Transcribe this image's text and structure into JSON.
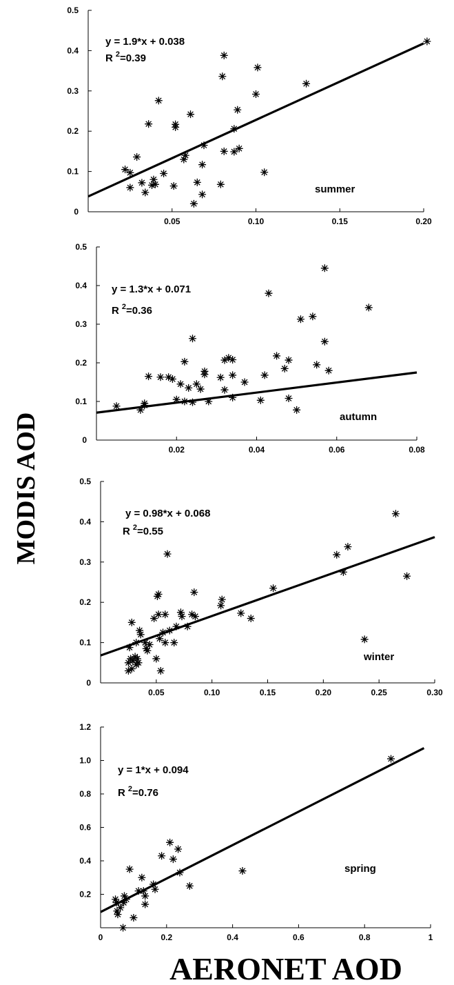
{
  "figure": {
    "ylabel": "MODIS AOD",
    "xlabel": "AERONET AOD"
  },
  "chart_data": [
    {
      "type": "scatter",
      "season": "summer",
      "equation": "y = 1.9*x + 0.038",
      "r2_prefix": "R",
      "r2_sup": "2",
      "r2_value": "=0.39",
      "fit": {
        "slope": 1.9,
        "intercept": 0.038,
        "x": [
          0.0,
          0.2
        ]
      },
      "xlim": [
        0.0,
        0.2
      ],
      "ylim": [
        0.0,
        0.5
      ],
      "xticks": [
        {
          "v": 0.05,
          "l": "0.05"
        },
        {
          "v": 0.1,
          "l": "0.10"
        },
        {
          "v": 0.15,
          "l": "0.15"
        },
        {
          "v": 0.2,
          "l": "0.20"
        }
      ],
      "yticks": [
        {
          "v": 0.0,
          "l": "0"
        },
        {
          "v": 0.1,
          "l": "0.1"
        },
        {
          "v": 0.2,
          "l": "0.2"
        },
        {
          "v": 0.3,
          "l": "0.3"
        },
        {
          "v": 0.4,
          "l": "0.4"
        },
        {
          "v": 0.5,
          "l": "0.5"
        }
      ],
      "points": [
        [
          0.022,
          0.105
        ],
        [
          0.025,
          0.097
        ],
        [
          0.025,
          0.06
        ],
        [
          0.029,
          0.136
        ],
        [
          0.032,
          0.072
        ],
        [
          0.034,
          0.048
        ],
        [
          0.036,
          0.218
        ],
        [
          0.038,
          0.066
        ],
        [
          0.039,
          0.08
        ],
        [
          0.04,
          0.068
        ],
        [
          0.042,
          0.276
        ],
        [
          0.045,
          0.095
        ],
        [
          0.051,
          0.064
        ],
        [
          0.052,
          0.217
        ],
        [
          0.052,
          0.21
        ],
        [
          0.057,
          0.13
        ],
        [
          0.058,
          0.14
        ],
        [
          0.061,
          0.242
        ],
        [
          0.063,
          0.02
        ],
        [
          0.065,
          0.073
        ],
        [
          0.068,
          0.043
        ],
        [
          0.068,
          0.117
        ],
        [
          0.069,
          0.165
        ],
        [
          0.079,
          0.068
        ],
        [
          0.08,
          0.336
        ],
        [
          0.081,
          0.388
        ],
        [
          0.081,
          0.15
        ],
        [
          0.087,
          0.206
        ],
        [
          0.087,
          0.149
        ],
        [
          0.089,
          0.253
        ],
        [
          0.09,
          0.157
        ],
        [
          0.1,
          0.292
        ],
        [
          0.101,
          0.358
        ],
        [
          0.105,
          0.098
        ],
        [
          0.13,
          0.318
        ],
        [
          0.202,
          0.423
        ]
      ]
    },
    {
      "type": "scatter",
      "season": "autumn",
      "equation": "y = 1.3*x + 0.071",
      "r2_prefix": "R",
      "r2_sup": "2",
      "r2_value": "=0.36",
      "fit": {
        "slope": 1.3,
        "intercept": 0.071,
        "x": [
          0.0,
          0.08
        ]
      },
      "xlim": [
        0.0,
        0.08
      ],
      "ylim": [
        0.0,
        0.5
      ],
      "xticks": [
        {
          "v": 0.02,
          "l": "0.02"
        },
        {
          "v": 0.04,
          "l": "0.04"
        },
        {
          "v": 0.06,
          "l": "0.06"
        },
        {
          "v": 0.08,
          "l": "0.08"
        }
      ],
      "yticks": [
        {
          "v": 0.0,
          "l": "0"
        },
        {
          "v": 0.1,
          "l": "0.1"
        },
        {
          "v": 0.2,
          "l": "0.2"
        },
        {
          "v": 0.3,
          "l": "0.3"
        },
        {
          "v": 0.4,
          "l": "0.4"
        },
        {
          "v": 0.5,
          "l": "0.5"
        }
      ],
      "points": [
        [
          0.005,
          0.088
        ],
        [
          0.011,
          0.078
        ],
        [
          0.012,
          0.09
        ],
        [
          0.012,
          0.095
        ],
        [
          0.013,
          0.165
        ],
        [
          0.016,
          0.163
        ],
        [
          0.018,
          0.163
        ],
        [
          0.019,
          0.158
        ],
        [
          0.02,
          0.105
        ],
        [
          0.021,
          0.145
        ],
        [
          0.022,
          0.203
        ],
        [
          0.022,
          0.1
        ],
        [
          0.023,
          0.135
        ],
        [
          0.024,
          0.263
        ],
        [
          0.024,
          0.098
        ],
        [
          0.025,
          0.145
        ],
        [
          0.026,
          0.132
        ],
        [
          0.027,
          0.178
        ],
        [
          0.027,
          0.17
        ],
        [
          0.028,
          0.1
        ],
        [
          0.031,
          0.162
        ],
        [
          0.032,
          0.13
        ],
        [
          0.032,
          0.207
        ],
        [
          0.033,
          0.213
        ],
        [
          0.034,
          0.208
        ],
        [
          0.034,
          0.168
        ],
        [
          0.034,
          0.11
        ],
        [
          0.037,
          0.15
        ],
        [
          0.041,
          0.103
        ],
        [
          0.042,
          0.168
        ],
        [
          0.043,
          0.38
        ],
        [
          0.045,
          0.218
        ],
        [
          0.047,
          0.185
        ],
        [
          0.048,
          0.207
        ],
        [
          0.048,
          0.108
        ],
        [
          0.05,
          0.078
        ],
        [
          0.051,
          0.313
        ],
        [
          0.054,
          0.32
        ],
        [
          0.055,
          0.195
        ],
        [
          0.057,
          0.445
        ],
        [
          0.057,
          0.255
        ],
        [
          0.058,
          0.18
        ],
        [
          0.068,
          0.343
        ]
      ]
    },
    {
      "type": "scatter",
      "season": "winter",
      "equation": "y = 0.98*x + 0.068",
      "r2_prefix": "R",
      "r2_sup": "2",
      "r2_value": "=0.55",
      "fit": {
        "slope": 0.98,
        "intercept": 0.068,
        "x": [
          0.0,
          0.3
        ]
      },
      "xlim": [
        0.0,
        0.3
      ],
      "ylim": [
        0.0,
        0.5
      ],
      "xticks": [
        {
          "v": 0.05,
          "l": "0.05"
        },
        {
          "v": 0.1,
          "l": "0.10"
        },
        {
          "v": 0.15,
          "l": "0.15"
        },
        {
          "v": 0.2,
          "l": "0.20"
        },
        {
          "v": 0.25,
          "l": "0.25"
        },
        {
          "v": 0.3,
          "l": "0.30"
        }
      ],
      "yticks": [
        {
          "v": 0.0,
          "l": "0"
        },
        {
          "v": 0.1,
          "l": "0.1"
        },
        {
          "v": 0.2,
          "l": "0.2"
        },
        {
          "v": 0.3,
          "l": "0.3"
        },
        {
          "v": 0.4,
          "l": "0.4"
        },
        {
          "v": 0.5,
          "l": "0.5"
        }
      ],
      "points": [
        [
          0.025,
          0.05
        ],
        [
          0.025,
          0.03
        ],
        [
          0.026,
          0.088
        ],
        [
          0.027,
          0.06
        ],
        [
          0.028,
          0.15
        ],
        [
          0.028,
          0.035
        ],
        [
          0.029,
          0.055
        ],
        [
          0.031,
          0.065
        ],
        [
          0.032,
          0.1
        ],
        [
          0.032,
          0.045
        ],
        [
          0.033,
          0.06
        ],
        [
          0.034,
          0.05
        ],
        [
          0.035,
          0.13
        ],
        [
          0.036,
          0.12
        ],
        [
          0.04,
          0.1
        ],
        [
          0.041,
          0.085
        ],
        [
          0.042,
          0.08
        ],
        [
          0.044,
          0.095
        ],
        [
          0.048,
          0.16
        ],
        [
          0.05,
          0.06
        ],
        [
          0.051,
          0.215
        ],
        [
          0.052,
          0.22
        ],
        [
          0.052,
          0.17
        ],
        [
          0.053,
          0.11
        ],
        [
          0.054,
          0.03
        ],
        [
          0.056,
          0.125
        ],
        [
          0.058,
          0.17
        ],
        [
          0.058,
          0.1
        ],
        [
          0.06,
          0.32
        ],
        [
          0.062,
          0.13
        ],
        [
          0.066,
          0.1
        ],
        [
          0.068,
          0.14
        ],
        [
          0.072,
          0.175
        ],
        [
          0.073,
          0.165
        ],
        [
          0.078,
          0.14
        ],
        [
          0.082,
          0.17
        ],
        [
          0.084,
          0.225
        ],
        [
          0.085,
          0.165
        ],
        [
          0.108,
          0.192
        ],
        [
          0.109,
          0.207
        ],
        [
          0.126,
          0.173
        ],
        [
          0.135,
          0.16
        ],
        [
          0.155,
          0.235
        ],
        [
          0.212,
          0.318
        ],
        [
          0.218,
          0.275
        ],
        [
          0.222,
          0.338
        ],
        [
          0.237,
          0.108
        ],
        [
          0.265,
          0.42
        ],
        [
          0.275,
          0.265
        ]
      ]
    },
    {
      "type": "scatter",
      "season": "spring",
      "equation": "y = 1*x + 0.094",
      "r2_prefix": "R",
      "r2_sup": "2",
      "r2_value": "=0.76",
      "fit": {
        "slope": 1.0,
        "intercept": 0.094,
        "x": [
          0.0,
          0.98
        ]
      },
      "xlim": [
        0.0,
        1.0
      ],
      "ylim": [
        0.0,
        1.2
      ],
      "xticks": [
        {
          "v": 0.0,
          "l": "0"
        },
        {
          "v": 0.2,
          "l": "0.2"
        },
        {
          "v": 0.4,
          "l": "0.4"
        },
        {
          "v": 0.6,
          "l": "0.6"
        },
        {
          "v": 0.8,
          "l": "0.8"
        },
        {
          "v": 1.0,
          "l": "1"
        }
      ],
      "yticks": [
        {
          "v": 0.2,
          "l": "0.2"
        },
        {
          "v": 0.4,
          "l": "0.4"
        },
        {
          "v": 0.6,
          "l": "0.6"
        },
        {
          "v": 0.8,
          "l": "0.8"
        },
        {
          "v": 1.0,
          "l": "1.0"
        },
        {
          "v": 1.2,
          "l": "1.2"
        }
      ],
      "points": [
        [
          0.045,
          0.17
        ],
        [
          0.048,
          0.15
        ],
        [
          0.05,
          0.1
        ],
        [
          0.052,
          0.08
        ],
        [
          0.06,
          0.12
        ],
        [
          0.068,
          0.0
        ],
        [
          0.07,
          0.15
        ],
        [
          0.072,
          0.19
        ],
        [
          0.078,
          0.17
        ],
        [
          0.088,
          0.35
        ],
        [
          0.1,
          0.06
        ],
        [
          0.115,
          0.22
        ],
        [
          0.125,
          0.3
        ],
        [
          0.13,
          0.22
        ],
        [
          0.135,
          0.14
        ],
        [
          0.135,
          0.19
        ],
        [
          0.16,
          0.26
        ],
        [
          0.165,
          0.23
        ],
        [
          0.185,
          0.43
        ],
        [
          0.21,
          0.51
        ],
        [
          0.22,
          0.41
        ],
        [
          0.235,
          0.47
        ],
        [
          0.24,
          0.33
        ],
        [
          0.27,
          0.25
        ],
        [
          0.43,
          0.34
        ],
        [
          0.88,
          1.01
        ]
      ]
    }
  ]
}
